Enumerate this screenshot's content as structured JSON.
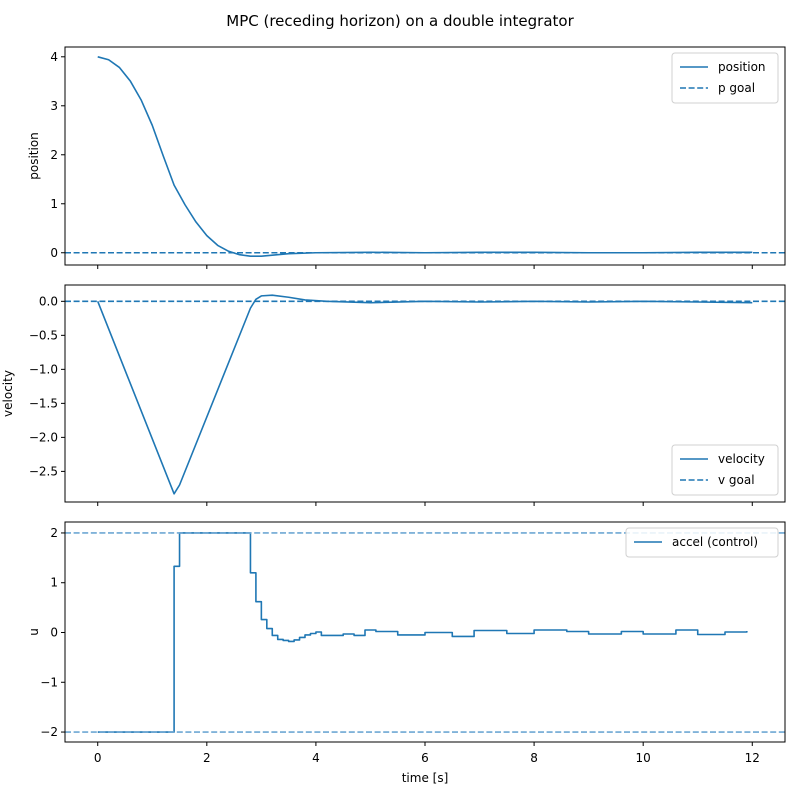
{
  "figure": {
    "title": "MPC (receding horizon) on a double integrator",
    "xlabel": "time [s]",
    "xticks": [
      "0",
      "2",
      "4",
      "6",
      "8",
      "10",
      "12"
    ],
    "line_color": "#1f77b4",
    "limit_color": "#6fa8d4"
  },
  "chart_data": [
    {
      "type": "line",
      "panel": "top",
      "ylabel": "position",
      "yticks": [
        "0",
        "1",
        "2",
        "3",
        "4"
      ],
      "xlim": [
        -0.6,
        12.6
      ],
      "ylim": [
        -0.25,
        4.2
      ],
      "legend": [
        "position",
        "p goal"
      ],
      "legend_position": "upper right",
      "series": [
        {
          "name": "position",
          "style": "solid",
          "x": [
            0,
            0.2,
            0.4,
            0.6,
            0.8,
            1.0,
            1.2,
            1.4,
            1.6,
            1.8,
            2.0,
            2.2,
            2.4,
            2.6,
            2.8,
            3.0,
            3.2,
            3.5,
            4.0,
            5.0,
            6.0,
            7.0,
            8.0,
            9.0,
            10.0,
            11.0,
            12.0
          ],
          "y": [
            4.0,
            3.94,
            3.78,
            3.5,
            3.11,
            2.6,
            1.98,
            1.38,
            0.98,
            0.63,
            0.35,
            0.15,
            0.03,
            -0.04,
            -0.07,
            -0.07,
            -0.05,
            -0.02,
            0.0,
            0.01,
            0.0,
            0.01,
            0.01,
            0.0,
            0.0,
            0.01,
            0.01
          ]
        },
        {
          "name": "p goal",
          "style": "dashed",
          "y_const": 0
        }
      ]
    },
    {
      "type": "line",
      "panel": "middle",
      "ylabel": "velocity",
      "yticks": [
        "0.0",
        "−0.5",
        "−1.0",
        "−1.5",
        "−2.0",
        "−2.5"
      ],
      "xlim": [
        -0.6,
        12.6
      ],
      "ylim": [
        -2.95,
        0.24
      ],
      "legend": [
        "velocity",
        "v goal"
      ],
      "legend_position": "lower right",
      "series": [
        {
          "name": "velocity",
          "style": "solid",
          "x": [
            0,
            1.4,
            1.5,
            2.8,
            2.9,
            3.0,
            3.2,
            3.5,
            3.8,
            4.2,
            5.0,
            6.0,
            7.0,
            8.0,
            9.0,
            10.0,
            11.0,
            12.0
          ],
          "y": [
            0.0,
            -2.83,
            -2.7,
            -0.1,
            0.03,
            0.08,
            0.09,
            0.06,
            0.02,
            0.0,
            -0.02,
            0.0,
            -0.01,
            0.0,
            -0.01,
            0.0,
            -0.01,
            -0.02
          ]
        },
        {
          "name": "v goal",
          "style": "dashed",
          "y_const": 0
        }
      ]
    },
    {
      "type": "line",
      "panel": "bottom",
      "step": true,
      "ylabel": "u",
      "yticks": [
        "2",
        "1",
        "0",
        "−1",
        "−2"
      ],
      "xlim": [
        -0.6,
        12.6
      ],
      "ylim": [
        -2.2,
        2.22
      ],
      "legend": [
        "accel (control)"
      ],
      "legend_position": "upper right",
      "series": [
        {
          "name": "accel (control)",
          "style": "steps-post",
          "x": [
            0,
            1.4,
            1.5,
            2.8,
            2.9,
            3.0,
            3.1,
            3.2,
            3.3,
            3.4,
            3.5,
            3.6,
            3.7,
            3.8,
            3.9,
            4.0,
            4.1,
            4.5,
            4.7,
            4.9,
            5.1,
            5.5,
            6.0,
            6.5,
            6.9,
            7.5,
            8.0,
            8.6,
            9.0,
            9.6,
            10.0,
            10.6,
            11.0,
            11.5,
            11.9
          ],
          "y": [
            -2.0,
            1.33,
            2.0,
            1.2,
            0.62,
            0.26,
            0.08,
            -0.06,
            -0.14,
            -0.16,
            -0.18,
            -0.15,
            -0.1,
            -0.05,
            -0.02,
            0.01,
            -0.06,
            -0.03,
            -0.06,
            0.05,
            0.02,
            -0.05,
            0.0,
            -0.08,
            0.04,
            -0.02,
            0.05,
            0.02,
            -0.03,
            0.02,
            -0.03,
            0.05,
            -0.04,
            0.01,
            0.03
          ]
        },
        {
          "name": "u max",
          "style": "dashed",
          "y_const": 2
        },
        {
          "name": "u min",
          "style": "dashed",
          "y_const": -2
        }
      ]
    }
  ]
}
